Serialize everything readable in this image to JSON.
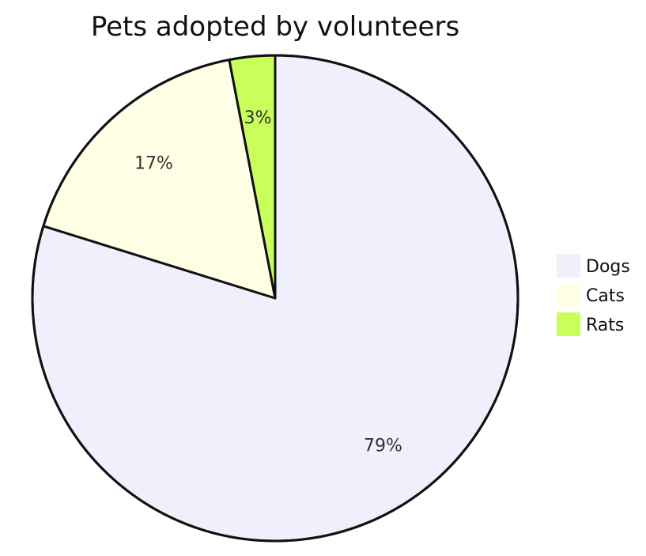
{
  "chart_data": {
    "type": "pie",
    "title": "Pets adopted by volunteers",
    "start_angle_deg": 0,
    "direction": "clockwise",
    "slices": [
      {
        "label": "Dogs",
        "value": 79,
        "display": "79%",
        "color": "#f0f0fd"
      },
      {
        "label": "Cats",
        "value": 17,
        "display": "17%",
        "color": "#ffffe5"
      },
      {
        "label": "Rats",
        "value": 3,
        "display": "3%",
        "color": "#c8ff5a"
      }
    ],
    "legend": {
      "placement": "right",
      "entries": [
        "Dogs",
        "Cats",
        "Rats"
      ]
    },
    "stroke_color": "#111111"
  }
}
